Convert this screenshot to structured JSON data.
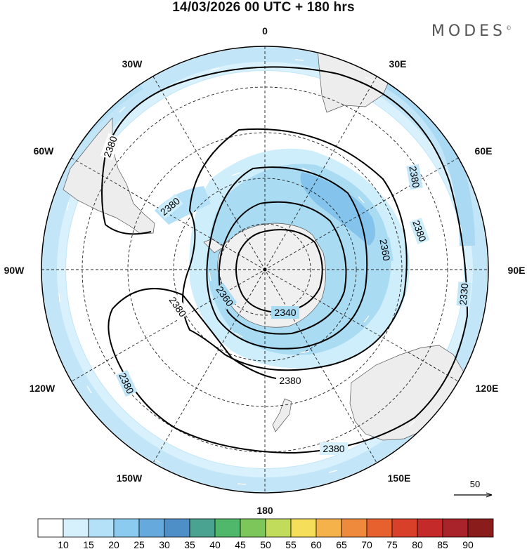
{
  "title": "14/03/2026  00 UTC  + 180 hrs",
  "brand": "MODES",
  "brand_mark": "©",
  "longitude_labels": [
    "0",
    "30E",
    "60E",
    "90E",
    "120E",
    "150E",
    "180",
    "150W",
    "120W",
    "90W",
    "60W",
    "30W"
  ],
  "contour_labels": [
    "2380",
    "2380",
    "2380",
    "2380",
    "2380",
    "2380",
    "2380",
    "2360",
    "2360",
    "2340",
    "2330",
    "2380"
  ],
  "vector_reference": "50",
  "colorbar": {
    "labels": [
      "10",
      "15",
      "20",
      "25",
      "30",
      "35",
      "40",
      "45",
      "50",
      "55",
      "60",
      "65",
      "70",
      "75",
      "80",
      "85",
      "90"
    ],
    "colors": [
      "#ffffff",
      "#d6f1fc",
      "#b4e1f7",
      "#8ccbf0",
      "#66a9dc",
      "#4f8fc8",
      "#4aa390",
      "#4fb86a",
      "#7cc65a",
      "#c1db5a",
      "#f5df5a",
      "#f5b24a",
      "#ef8a3c",
      "#e6612e",
      "#d8402a",
      "#c52a2a",
      "#a8242a",
      "#8a1c1c"
    ]
  }
}
